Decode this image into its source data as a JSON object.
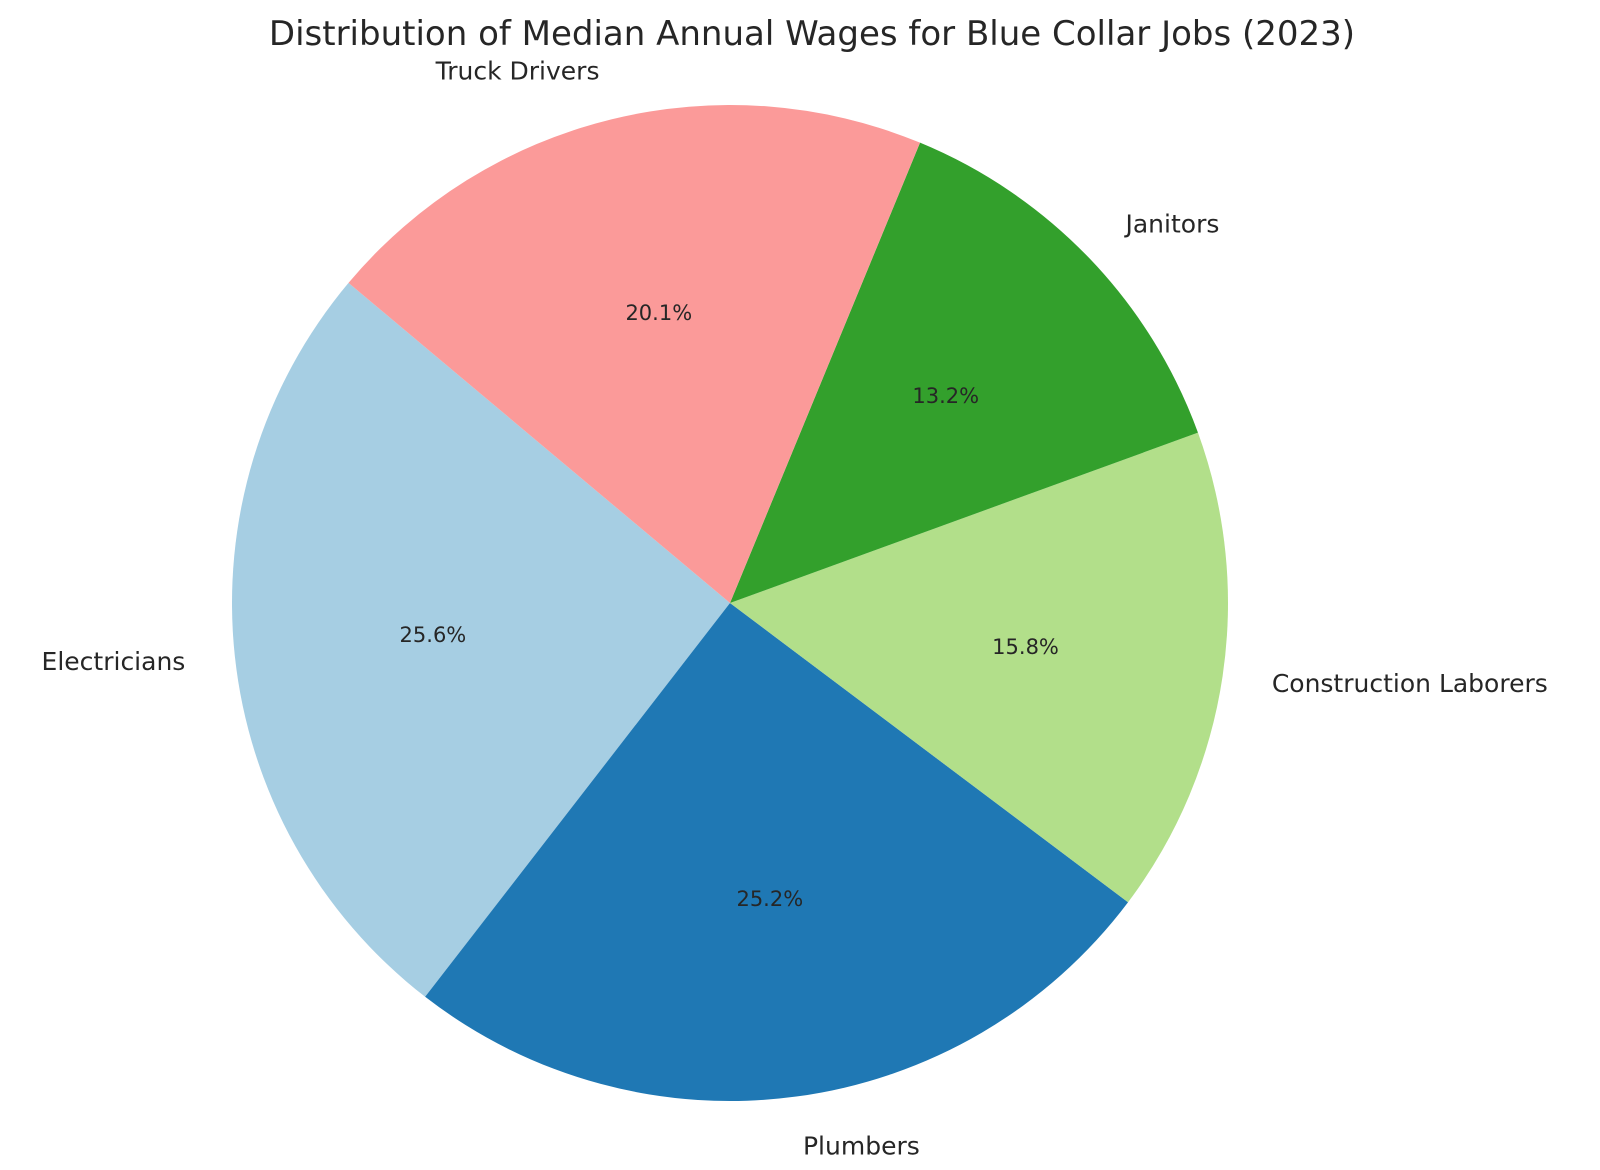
{
  "chart_data": {
    "type": "pie",
    "title": "Distribution of Median Annual Wages for Blue Collar Jobs (2023)",
    "start_angle_deg": 140,
    "direction": "counterclockwise",
    "slices": [
      {
        "label": "Electricians",
        "value": 25.6,
        "pct_label": "25.6%",
        "color": "#a6cee3"
      },
      {
        "label": "Plumbers",
        "value": 25.2,
        "pct_label": "25.2%",
        "color": "#1f78b4"
      },
      {
        "label": "Construction Laborers",
        "value": 15.8,
        "pct_label": "15.8%",
        "color": "#b2df8a"
      },
      {
        "label": "Janitors",
        "value": 13.2,
        "pct_label": "13.2%",
        "color": "#33a02c"
      },
      {
        "label": "Truck Drivers",
        "value": 20.1,
        "pct_label": "20.1%",
        "color": "#fb9a99"
      }
    ]
  }
}
